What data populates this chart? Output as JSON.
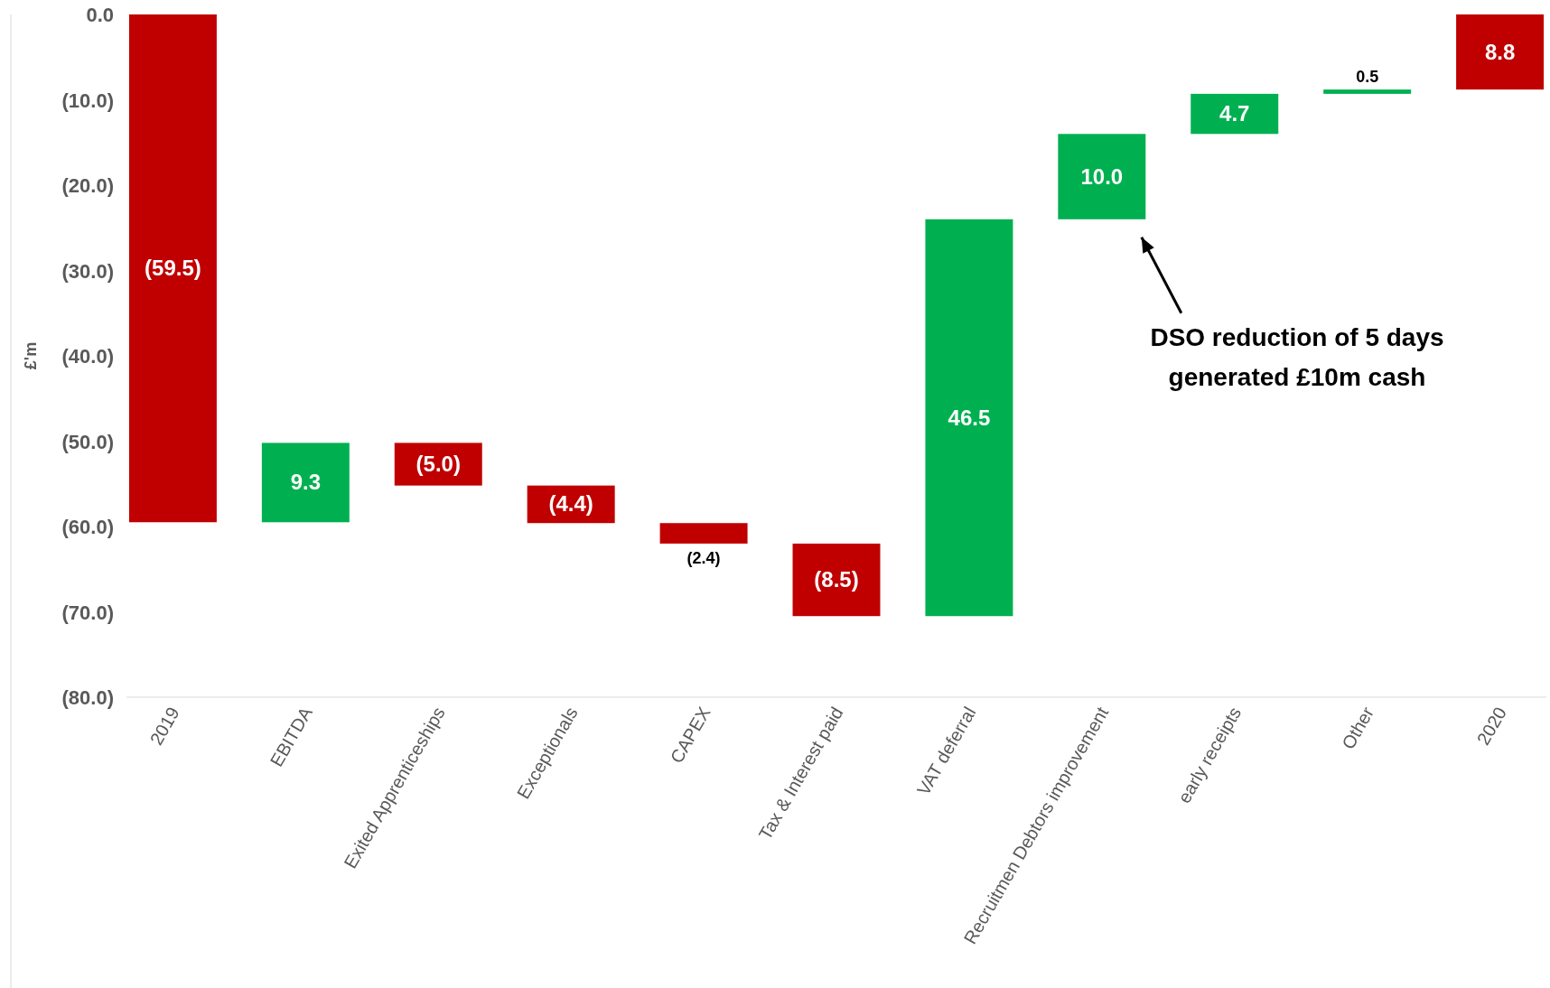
{
  "chart_data": {
    "type": "bar",
    "ylabel": "£'m",
    "categories": [
      "2019",
      "EBITDA",
      "Exited Apprenticeships",
      "Exceptionals",
      "CAPEX",
      "Tax & Interest paid",
      "VAT deferral",
      "Recruitmen Debtors improvement",
      "early receipts",
      "Other",
      "2020"
    ],
    "base": [
      0,
      -59.5,
      -50.2,
      -55.2,
      -59.6,
      -62.0,
      -70.5,
      -24.0,
      -14.0,
      -9.3,
      0
    ],
    "values": [
      -59.5,
      9.3,
      -5.0,
      -4.4,
      -2.4,
      -8.5,
      46.5,
      10.0,
      4.7,
      0.5,
      -8.8
    ],
    "colors": [
      "#c00000",
      "#00b050",
      "#c00000",
      "#c00000",
      "#c00000",
      "#c00000",
      "#00b050",
      "#00b050",
      "#00b050",
      "#00b050",
      "#c00000"
    ],
    "value_labels": [
      "(59.5)",
      "9.3",
      "(5.0)",
      "(4.4)",
      "(2.4)",
      "(8.5)",
      "46.5",
      "10.0",
      "4.7",
      "0.5",
      "8.8"
    ],
    "ylim": [
      -80,
      0
    ],
    "yticks": [
      {
        "value": 0,
        "label": "0.0"
      },
      {
        "value": -10,
        "label": "(10.0)"
      },
      {
        "value": -20,
        "label": "(20.0)"
      },
      {
        "value": -30,
        "label": "(30.0)"
      },
      {
        "value": -40,
        "label": "(40.0)"
      },
      {
        "value": -50,
        "label": "(50.0)"
      },
      {
        "value": -60,
        "label": "(60.0)"
      },
      {
        "value": -70,
        "label": "(70.0)"
      },
      {
        "value": -80,
        "label": "(80.0)"
      }
    ],
    "grid": false,
    "annotations": [
      "DSO reduction of 5 days generated £10m cash"
    ]
  }
}
